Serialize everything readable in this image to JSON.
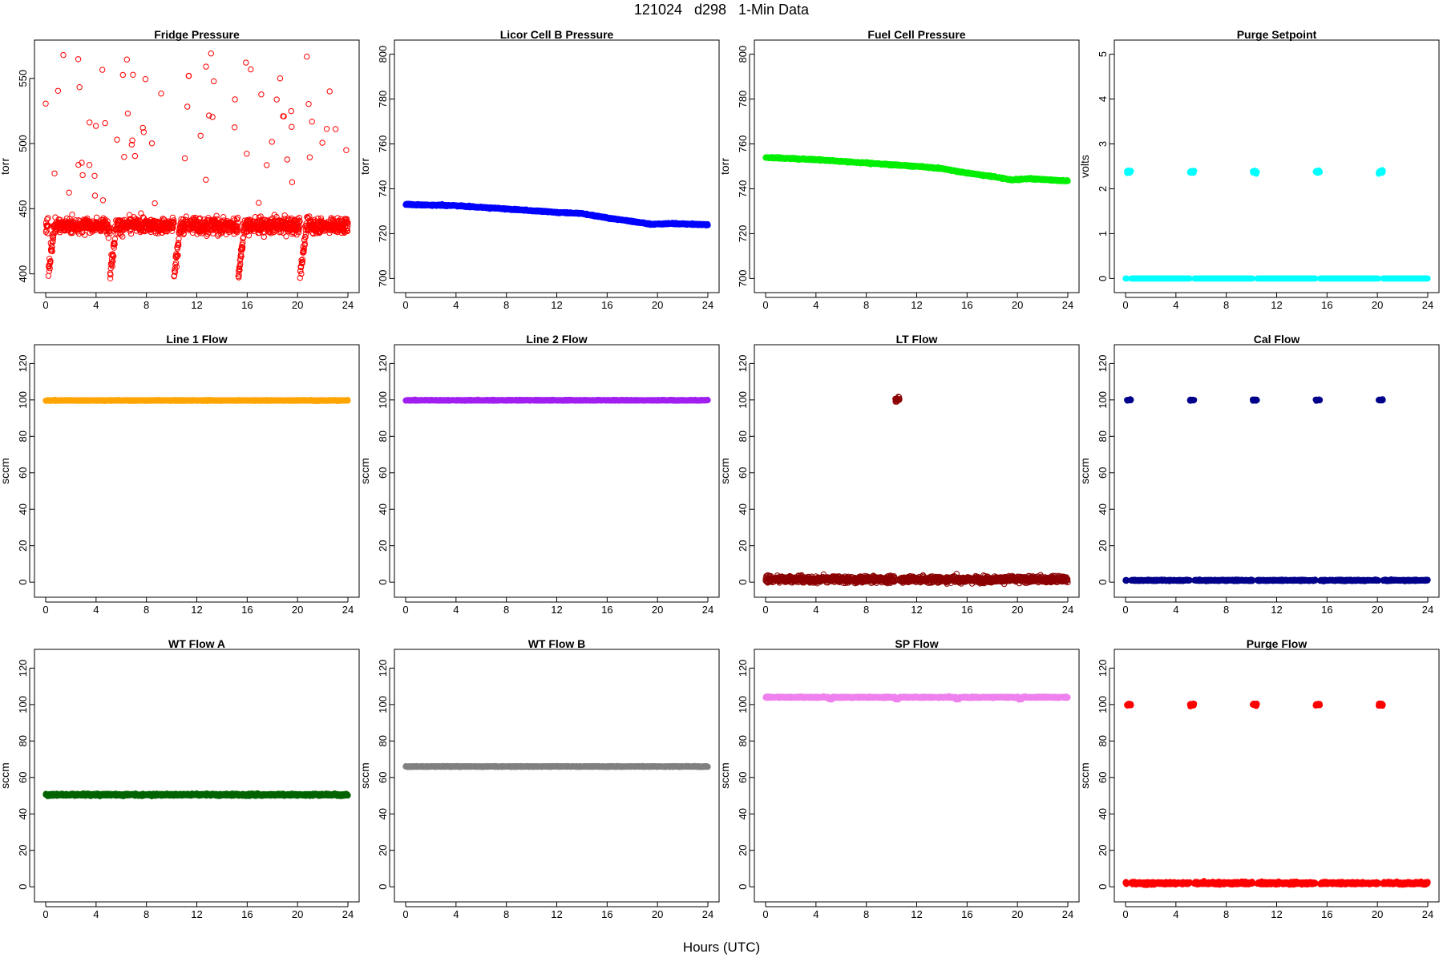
{
  "figure": {
    "title": "121024   d298   1-Min Data",
    "xlabel": "Hours (UTC)"
  },
  "chart_data": [
    {
      "type": "scatter",
      "title": "Fridge Pressure",
      "ylabel": "torr",
      "xlim": [
        0,
        24
      ],
      "ylim": [
        393,
        572
      ],
      "yticks": [
        400,
        450,
        500,
        550
      ],
      "color": "#ff0000",
      "open": true,
      "pattern": "fridge",
      "base": 437,
      "noise": 5
    },
    {
      "type": "scatter",
      "title": "Licor Cell B Pressure",
      "ylabel": "torr",
      "xlim": [
        0,
        24
      ],
      "ylim": [
        698,
        802
      ],
      "yticks": [
        700,
        720,
        740,
        760,
        780,
        800
      ],
      "color": "#0000ff",
      "open": false,
      "pattern": "decline",
      "profile": [
        [
          0,
          733
        ],
        [
          4,
          732.5
        ],
        [
          8,
          731
        ],
        [
          12,
          729.5
        ],
        [
          14,
          729
        ],
        [
          16,
          727
        ],
        [
          18,
          725.5
        ],
        [
          19.5,
          724.2
        ],
        [
          21,
          724.5
        ],
        [
          24,
          724
        ]
      ]
    },
    {
      "type": "scatter",
      "title": "Fuel Cell Pressure",
      "ylabel": "torr",
      "xlim": [
        0,
        24
      ],
      "ylim": [
        698,
        802
      ],
      "yticks": [
        700,
        720,
        740,
        760,
        780,
        800
      ],
      "color": "#00ee00",
      "open": false,
      "pattern": "decline",
      "profile": [
        [
          0,
          754
        ],
        [
          4,
          753
        ],
        [
          8,
          751.5
        ],
        [
          12,
          750
        ],
        [
          14,
          749
        ],
        [
          16,
          747
        ],
        [
          18,
          745.5
        ],
        [
          19.5,
          744
        ],
        [
          21,
          744.5
        ],
        [
          24,
          743.5
        ]
      ]
    },
    {
      "type": "scatter",
      "title": "Purge Setpoint",
      "ylabel": "volts",
      "xlim": [
        0,
        24
      ],
      "ylim": [
        -0.1,
        5.1
      ],
      "yticks": [
        0,
        1,
        2,
        3,
        4,
        5
      ],
      "color": "#00ffff",
      "open": false,
      "pattern": "flagged",
      "base": 0,
      "noise": 0,
      "flag": 2.38,
      "flag_noise": 0.03,
      "flag_times": [
        0.1,
        5.1,
        10.1,
        15.1,
        20.1
      ]
    },
    {
      "type": "scatter",
      "title": "Line 1 Flow",
      "ylabel": "sccm",
      "xlim": [
        0,
        24
      ],
      "ylim": [
        -3,
        125
      ],
      "yticks": [
        0,
        20,
        40,
        60,
        80,
        100,
        120
      ],
      "color": "#ffa500",
      "open": false,
      "pattern": "flat",
      "base": 99.7,
      "noise": 0.2
    },
    {
      "type": "scatter",
      "title": "Line 2 Flow",
      "ylabel": "sccm",
      "xlim": [
        0,
        24
      ],
      "ylim": [
        -3,
        125
      ],
      "yticks": [
        0,
        20,
        40,
        60,
        80,
        100,
        120
      ],
      "color": "#a020f0",
      "open": false,
      "pattern": "flat",
      "base": 99.8,
      "noise": 0.2
    },
    {
      "type": "scatter",
      "title": "LT Flow",
      "ylabel": "sccm",
      "xlim": [
        0,
        24
      ],
      "ylim": [
        -3,
        125
      ],
      "yticks": [
        0,
        20,
        40,
        60,
        80,
        100,
        120
      ],
      "color": "#8b0000",
      "open": true,
      "pattern": "flagged",
      "base": 1.5,
      "noise": 1.5,
      "flag": 100.3,
      "flag_noise": 1.2,
      "flag_times": [
        10.3
      ]
    },
    {
      "type": "scatter",
      "title": "Cal Flow",
      "ylabel": "sccm",
      "xlim": [
        0,
        24
      ],
      "ylim": [
        -3,
        125
      ],
      "yticks": [
        0,
        20,
        40,
        60,
        80,
        100,
        120
      ],
      "color": "#00008b",
      "open": false,
      "pattern": "flagged",
      "base": 1.0,
      "noise": 0.3,
      "flag": 99.9,
      "flag_noise": 0.3,
      "flag_times": [
        0.1,
        5.1,
        10.1,
        15.1,
        20.1
      ]
    },
    {
      "type": "scatter",
      "title": "WT Flow A",
      "ylabel": "sccm",
      "xlim": [
        0,
        24
      ],
      "ylim": [
        -3,
        125
      ],
      "yticks": [
        0,
        20,
        40,
        60,
        80,
        100,
        120
      ],
      "color": "#006400",
      "open": false,
      "pattern": "flat",
      "base": 50.5,
      "noise": 0.5
    },
    {
      "type": "scatter",
      "title": "WT Flow B",
      "ylabel": "sccm",
      "xlim": [
        0,
        24
      ],
      "ylim": [
        -3,
        125
      ],
      "yticks": [
        0,
        20,
        40,
        60,
        80,
        100,
        120
      ],
      "color": "#808080",
      "open": false,
      "pattern": "flat",
      "base": 66,
      "noise": 0.2
    },
    {
      "type": "scatter",
      "title": "SP Flow",
      "ylabel": "sccm",
      "xlim": [
        0,
        24
      ],
      "ylim": [
        -3,
        125
      ],
      "yticks": [
        0,
        20,
        40,
        60,
        80,
        100,
        120
      ],
      "color": "#ee82ee",
      "open": false,
      "pattern": "sp",
      "base": 104,
      "noise": 0.3,
      "dip_times": [
        5,
        10.3,
        15.1,
        20.1
      ],
      "dip": 103
    },
    {
      "type": "scatter",
      "title": "Purge Flow",
      "ylabel": "sccm",
      "xlim": [
        0,
        24
      ],
      "ylim": [
        -3,
        125
      ],
      "yticks": [
        0,
        20,
        40,
        60,
        80,
        100,
        120
      ],
      "color": "#ff0000",
      "open": false,
      "pattern": "flagged",
      "base": 2.0,
      "noise": 0.6,
      "flag": 100,
      "flag_noise": 0.6,
      "flag_times": [
        0.1,
        5.1,
        10.1,
        15.1,
        20.1
      ]
    }
  ]
}
